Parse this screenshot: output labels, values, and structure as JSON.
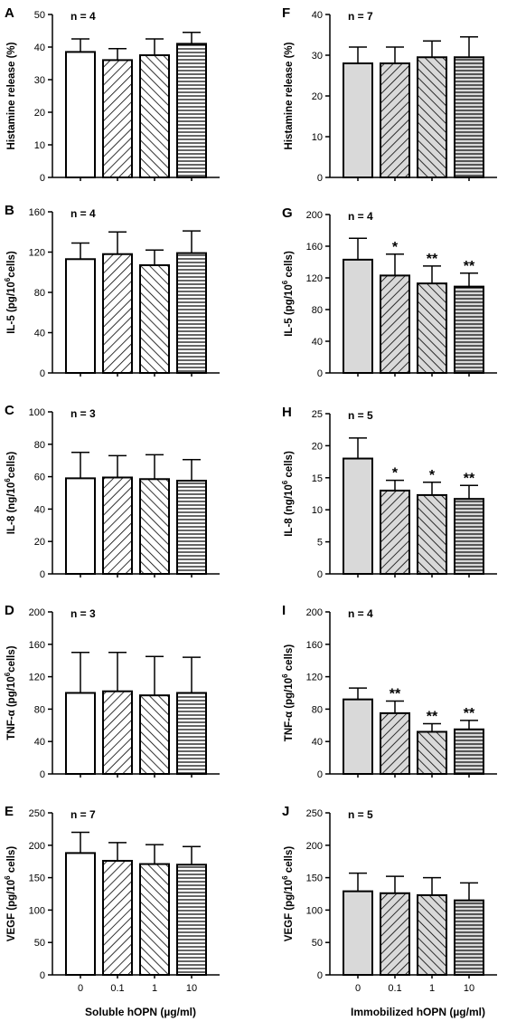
{
  "chart_data": [
    {
      "type": "bar",
      "panel": "A",
      "n_label": "n = 4",
      "ylabel": "Histamine release (%)",
      "ylim": [
        0,
        50
      ],
      "yticks": [
        0,
        10,
        20,
        30,
        40,
        50
      ],
      "categories": [
        "0",
        "0.1",
        "1",
        "10"
      ],
      "values": [
        38.5,
        36,
        37.5,
        41
      ],
      "errors": [
        4,
        3.5,
        5,
        3.5
      ],
      "significance": [
        "",
        "",
        "",
        ""
      ],
      "fill_style": "soluble"
    },
    {
      "type": "bar",
      "panel": "B",
      "n_label": "n = 4",
      "ylabel": "IL-5 (pg/10^6cells)",
      "ylim": [
        0,
        160
      ],
      "yticks": [
        0,
        40,
        80,
        120,
        160
      ],
      "categories": [
        "0",
        "0.1",
        "1",
        "10"
      ],
      "values": [
        113,
        118,
        107,
        119
      ],
      "errors": [
        16,
        22,
        15,
        22
      ],
      "significance": [
        "",
        "",
        "",
        ""
      ],
      "fill_style": "soluble"
    },
    {
      "type": "bar",
      "panel": "C",
      "n_label": "n = 3",
      "ylabel": "IL-8 (ng/10^6cells)",
      "ylim": [
        0,
        100
      ],
      "yticks": [
        0,
        20,
        40,
        60,
        80,
        100
      ],
      "categories": [
        "0",
        "0.1",
        "1",
        "10"
      ],
      "values": [
        59,
        59.5,
        58.5,
        57.5
      ],
      "errors": [
        16,
        13.5,
        15,
        13
      ],
      "significance": [
        "",
        "",
        "",
        ""
      ],
      "fill_style": "soluble"
    },
    {
      "type": "bar",
      "panel": "D",
      "n_label": "n = 3",
      "ylabel": "TNF-α (pg/10^6cells)",
      "ylim": [
        0,
        200
      ],
      "yticks": [
        0,
        40,
        80,
        120,
        160,
        200
      ],
      "categories": [
        "0",
        "0.1",
        "1",
        "10"
      ],
      "values": [
        100,
        102,
        97,
        100
      ],
      "errors": [
        50,
        48,
        48,
        44
      ],
      "significance": [
        "",
        "",
        "",
        ""
      ],
      "fill_style": "soluble"
    },
    {
      "type": "bar",
      "panel": "E",
      "n_label": "n = 7",
      "ylabel": "VEGF (pg/10^6 cells)",
      "ylim": [
        0,
        250
      ],
      "yticks": [
        0,
        50,
        100,
        150,
        200,
        250
      ],
      "categories": [
        "0",
        "0.1",
        "1",
        "10"
      ],
      "values": [
        188,
        176,
        171,
        170
      ],
      "errors": [
        32,
        28,
        30,
        28
      ],
      "significance": [
        "",
        "",
        "",
        ""
      ],
      "fill_style": "soluble",
      "xlabel": "Soluble hOPN (µg/ml)"
    },
    {
      "type": "bar",
      "panel": "F",
      "n_label": "n = 7",
      "ylabel": "Histamine release (%)",
      "ylim": [
        0,
        40
      ],
      "yticks": [
        0,
        10,
        20,
        30,
        40
      ],
      "categories": [
        "0",
        "0.1",
        "1",
        "10"
      ],
      "values": [
        28,
        28,
        29.5,
        29.5
      ],
      "errors": [
        4,
        4,
        4,
        5
      ],
      "significance": [
        "",
        "",
        "",
        ""
      ],
      "fill_style": "immobilized"
    },
    {
      "type": "bar",
      "panel": "G",
      "n_label": "n = 4",
      "ylabel": "IL-5 (pg/10^6 cells)",
      "ylim": [
        0,
        200
      ],
      "yticks": [
        0,
        40,
        80,
        120,
        160,
        200
      ],
      "categories": [
        "0",
        "0.1",
        "1",
        "10"
      ],
      "values": [
        143,
        123,
        113,
        109
      ],
      "errors": [
        27,
        27,
        22,
        17
      ],
      "significance": [
        "",
        "*",
        "**",
        "**"
      ],
      "fill_style": "immobilized"
    },
    {
      "type": "bar",
      "panel": "H",
      "n_label": "n = 5",
      "ylabel": "IL-8 (ng/10^6 cells)",
      "ylim": [
        0,
        25
      ],
      "yticks": [
        0,
        5,
        10,
        15,
        20,
        25
      ],
      "categories": [
        "0",
        "0.1",
        "1",
        "10"
      ],
      "values": [
        18,
        13,
        12.3,
        11.7
      ],
      "errors": [
        3.2,
        1.6,
        2,
        2.1
      ],
      "significance": [
        "",
        "*",
        "*",
        "**"
      ],
      "fill_style": "immobilized"
    },
    {
      "type": "bar",
      "panel": "I",
      "n_label": "n = 4",
      "ylabel": "TNF-α (pg/10^6 cells)",
      "ylim": [
        0,
        200
      ],
      "yticks": [
        0,
        40,
        80,
        120,
        160,
        200
      ],
      "categories": [
        "0",
        "0.1",
        "1",
        "10"
      ],
      "values": [
        92,
        75,
        52,
        55
      ],
      "errors": [
        14,
        15,
        10,
        11
      ],
      "significance": [
        "",
        "**",
        "**",
        "**"
      ],
      "fill_style": "immobilized"
    },
    {
      "type": "bar",
      "panel": "J",
      "n_label": "n = 5",
      "ylabel": "VEGF (pg/10^6 cells)",
      "ylim": [
        0,
        250
      ],
      "yticks": [
        0,
        50,
        100,
        150,
        200,
        250
      ],
      "categories": [
        "0",
        "0.1",
        "1",
        "10"
      ],
      "values": [
        129,
        126,
        123,
        115
      ],
      "errors": [
        28,
        26,
        27,
        27
      ],
      "significance": [
        "",
        "",
        "",
        ""
      ],
      "fill_style": "immobilized",
      "xlabel": "Immobilized hOPN (µg/ml)"
    }
  ],
  "colors": {
    "soluble_control": "#ffffff",
    "immobilized_fill": "#d9d9d9",
    "ink": "#000000"
  },
  "bar_patterns": [
    "none",
    "diagonal-backslash",
    "diagonal-slash",
    "horizontal"
  ]
}
